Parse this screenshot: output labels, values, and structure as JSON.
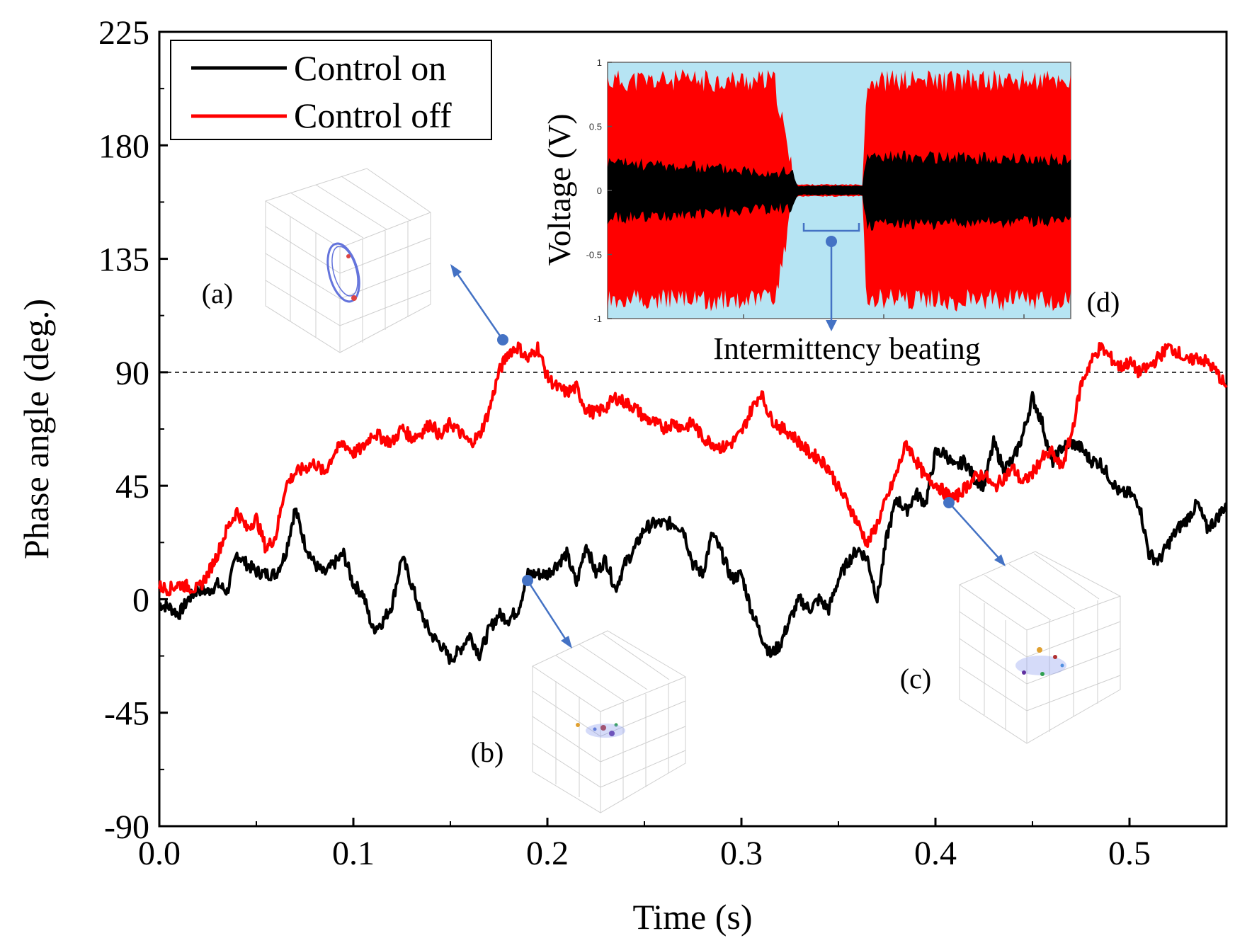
{
  "chart_data": {
    "type": "line",
    "xlabel": "Time (s)",
    "ylabel": "Phase angle (deg.)",
    "xlim": [
      0.0,
      0.55
    ],
    "ylim": [
      -90,
      225
    ],
    "xticks": [
      "0.0",
      "0.1",
      "0.2",
      "0.3",
      "0.4",
      "0.5"
    ],
    "xtick_values": [
      0.0,
      0.1,
      0.2,
      0.3,
      0.4,
      0.5
    ],
    "yticks": [
      "-90",
      "-45",
      "0",
      "45",
      "90",
      "135",
      "180",
      "225"
    ],
    "ytick_values": [
      -90,
      -45,
      0,
      45,
      90,
      135,
      180,
      225
    ],
    "reference_line": 90,
    "legend_position": "top-left",
    "series": [
      {
        "name": "Control on",
        "color": "#000000",
        "x": [
          0.0,
          0.005,
          0.01,
          0.015,
          0.02,
          0.025,
          0.03,
          0.035,
          0.04,
          0.045,
          0.05,
          0.055,
          0.06,
          0.065,
          0.07,
          0.075,
          0.08,
          0.085,
          0.09,
          0.095,
          0.1,
          0.105,
          0.11,
          0.115,
          0.12,
          0.125,
          0.13,
          0.135,
          0.14,
          0.145,
          0.15,
          0.155,
          0.16,
          0.165,
          0.17,
          0.175,
          0.18,
          0.185,
          0.19,
          0.195,
          0.2,
          0.205,
          0.21,
          0.215,
          0.22,
          0.225,
          0.23,
          0.235,
          0.24,
          0.245,
          0.25,
          0.255,
          0.26,
          0.265,
          0.27,
          0.275,
          0.28,
          0.285,
          0.29,
          0.295,
          0.3,
          0.305,
          0.31,
          0.315,
          0.32,
          0.325,
          0.33,
          0.335,
          0.34,
          0.345,
          0.35,
          0.355,
          0.36,
          0.365,
          0.37,
          0.375,
          0.38,
          0.385,
          0.39,
          0.395,
          0.4,
          0.405,
          0.41,
          0.415,
          0.42,
          0.425,
          0.43,
          0.435,
          0.44,
          0.445,
          0.45,
          0.455,
          0.46,
          0.465,
          0.47,
          0.475,
          0.48,
          0.485,
          0.49,
          0.495,
          0.5,
          0.505,
          0.51,
          0.515,
          0.52,
          0.525,
          0.53,
          0.535,
          0.54,
          0.545,
          0.55
        ],
        "y": [
          -2,
          -3,
          -6,
          0,
          4,
          3,
          6,
          3,
          18,
          14,
          11,
          10,
          10,
          18,
          36,
          22,
          14,
          10,
          14,
          18,
          6,
          2,
          -12,
          -9,
          -2,
          17,
          6,
          -6,
          -14,
          -18,
          -24,
          -20,
          -14,
          -22,
          -12,
          -6,
          -8,
          -4,
          10,
          10,
          10,
          14,
          18,
          6,
          22,
          10,
          16,
          4,
          14,
          20,
          28,
          30,
          30,
          30,
          28,
          14,
          10,
          26,
          18,
          8,
          10,
          -4,
          -14,
          -22,
          -18,
          -8,
          0,
          -4,
          0,
          -4,
          8,
          15,
          20,
          16,
          0,
          25,
          40,
          35,
          42,
          38,
          58,
          58,
          52,
          55,
          48,
          45,
          62,
          52,
          55,
          65,
          80,
          70,
          54,
          60,
          62,
          60,
          55,
          54,
          48,
          42,
          42,
          38,
          18,
          15,
          22,
          28,
          32,
          38,
          28,
          32,
          38
        ]
      },
      {
        "name": "Control off",
        "color": "#ff0000",
        "x": [
          0.0,
          0.005,
          0.01,
          0.015,
          0.02,
          0.025,
          0.03,
          0.035,
          0.04,
          0.045,
          0.05,
          0.055,
          0.06,
          0.065,
          0.07,
          0.075,
          0.08,
          0.085,
          0.09,
          0.095,
          0.1,
          0.105,
          0.11,
          0.115,
          0.12,
          0.125,
          0.13,
          0.135,
          0.14,
          0.145,
          0.15,
          0.155,
          0.16,
          0.165,
          0.17,
          0.175,
          0.18,
          0.185,
          0.19,
          0.195,
          0.2,
          0.205,
          0.21,
          0.215,
          0.22,
          0.225,
          0.23,
          0.235,
          0.24,
          0.245,
          0.25,
          0.255,
          0.26,
          0.265,
          0.27,
          0.275,
          0.28,
          0.285,
          0.29,
          0.295,
          0.3,
          0.305,
          0.31,
          0.315,
          0.32,
          0.325,
          0.33,
          0.335,
          0.34,
          0.345,
          0.35,
          0.355,
          0.36,
          0.365,
          0.37,
          0.375,
          0.38,
          0.385,
          0.39,
          0.395,
          0.4,
          0.405,
          0.41,
          0.415,
          0.42,
          0.425,
          0.43,
          0.435,
          0.44,
          0.445,
          0.45,
          0.455,
          0.46,
          0.465,
          0.47,
          0.475,
          0.48,
          0.485,
          0.49,
          0.495,
          0.5,
          0.505,
          0.51,
          0.515,
          0.52,
          0.525,
          0.53,
          0.535,
          0.54,
          0.545,
          0.55
        ],
        "y": [
          5,
          4,
          6,
          5,
          4,
          10,
          18,
          28,
          35,
          28,
          32,
          20,
          25,
          45,
          50,
          52,
          54,
          50,
          58,
          62,
          58,
          60,
          66,
          64,
          62,
          68,
          64,
          66,
          70,
          64,
          70,
          66,
          62,
          65,
          75,
          90,
          98,
          100,
          95,
          100,
          88,
          84,
          82,
          84,
          75,
          74,
          76,
          80,
          78,
          76,
          72,
          70,
          68,
          70,
          68,
          70,
          64,
          62,
          60,
          62,
          66,
          75,
          82,
          72,
          68,
          66,
          62,
          58,
          56,
          52,
          44,
          38,
          30,
          22,
          30,
          40,
          50,
          62,
          55,
          48,
          46,
          42,
          40,
          44,
          48,
          50,
          44,
          48,
          52,
          46,
          50,
          56,
          58,
          52,
          65,
          85,
          94,
          100,
          96,
          92,
          94,
          90,
          92,
          96,
          100,
          98,
          94,
          96,
          94,
          90,
          84
        ]
      }
    ],
    "annotations": [
      "(a)",
      "(b)",
      "(c)",
      "(d)",
      "Intermittency beating"
    ],
    "inset": {
      "type": "line",
      "ylabel": "Voltage (V)",
      "ylim": [
        -1,
        1
      ],
      "yticks": [
        "1",
        "0.5",
        "0",
        "-0.5",
        "-1"
      ],
      "ytick_values": [
        1,
        0.5,
        0,
        -0.5,
        -1
      ],
      "background_color": "#b6e4f3",
      "series": [
        {
          "name": "Control off",
          "color": "#ff0000",
          "envelope_t": [
            0.0,
            0.36,
            0.4,
            0.41,
            0.55,
            0.56,
            1.0
          ],
          "envelope_amp": [
            0.82,
            0.82,
            0.08,
            0.04,
            0.04,
            0.82,
            0.82
          ]
        },
        {
          "name": "Control on",
          "color": "#000000",
          "envelope_t": [
            0.0,
            0.4,
            0.41,
            0.55,
            0.56,
            1.0
          ],
          "envelope_amp": [
            0.2,
            0.12,
            0.03,
            0.03,
            0.25,
            0.22
          ]
        }
      ]
    }
  }
}
